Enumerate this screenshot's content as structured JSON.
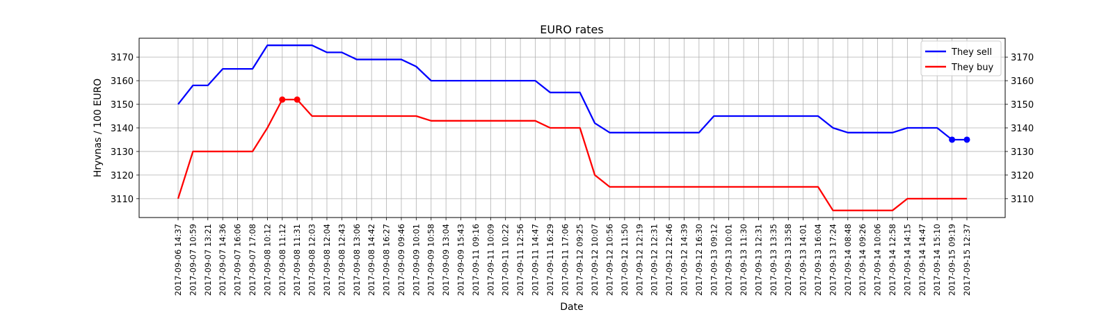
{
  "chart_data": {
    "type": "line",
    "title": "EURO rates",
    "xlabel": "Date",
    "ylabel": "Hryvnas / 100 EURO",
    "ylim": [
      3102,
      3178
    ],
    "yticks": [
      3110,
      3120,
      3130,
      3140,
      3150,
      3160,
      3170
    ],
    "y_axis_right_mirror": true,
    "grid": true,
    "legend_position": "top-right",
    "categories": [
      "2017-09-06 14:37",
      "2017-09-07 10:59",
      "2017-09-07 13:21",
      "2017-09-07 14:36",
      "2017-09-07 16:06",
      "2017-09-07 17:08",
      "2017-09-08 10:12",
      "2017-09-08 11:12",
      "2017-09-08 11:31",
      "2017-09-08 12:03",
      "2017-09-08 12:04",
      "2017-09-08 12:43",
      "2017-09-08 13:06",
      "2017-09-08 14:42",
      "2017-09-08 16:27",
      "2017-09-09 09:46",
      "2017-09-09 10:01",
      "2017-09-09 10:58",
      "2017-09-09 13:04",
      "2017-09-09 15:43",
      "2017-09-11 09:16",
      "2017-09-11 10:09",
      "2017-09-11 10:22",
      "2017-09-11 12:56",
      "2017-09-11 14:47",
      "2017-09-11 16:29",
      "2017-09-11 17:06",
      "2017-09-12 09:25",
      "2017-09-12 10:07",
      "2017-09-12 10:56",
      "2017-09-12 11:50",
      "2017-09-12 12:19",
      "2017-09-12 12:31",
      "2017-09-12 12:46",
      "2017-09-12 14:39",
      "2017-09-12 16:30",
      "2017-09-13 09:12",
      "2017-09-13 10:01",
      "2017-09-13 11:30",
      "2017-09-13 12:31",
      "2017-09-13 13:35",
      "2017-09-13 13:58",
      "2017-09-13 14:01",
      "2017-09-13 16:04",
      "2017-09-13 17:24",
      "2017-09-14 08:48",
      "2017-09-14 09:26",
      "2017-09-14 10:06",
      "2017-09-14 12:58",
      "2017-09-14 14:15",
      "2017-09-14 14:47",
      "2017-09-14 15:10",
      "2017-09-15 09:19",
      "2017-09-15 12:37"
    ],
    "series": [
      {
        "name": "They sell",
        "color": "#0000ff",
        "values": [
          3150,
          3158,
          3158,
          3165,
          3165,
          3165,
          3175,
          3175,
          3175,
          3175,
          3172,
          3172,
          3169,
          3169,
          3169,
          3169,
          3166,
          3160,
          3160,
          3160,
          3160,
          3160,
          3160,
          3160,
          3160,
          3155,
          3155,
          3155,
          3142,
          3138,
          3138,
          3138,
          3138,
          3138,
          3138,
          3138,
          3145,
          3145,
          3145,
          3145,
          3145,
          3145,
          3145,
          3145,
          3140,
          3138,
          3138,
          3138,
          3138,
          3140,
          3140,
          3140,
          3135,
          3135
        ],
        "marker_indices": [
          52,
          53
        ]
      },
      {
        "name": "They buy",
        "color": "#ff0000",
        "values": [
          3110,
          3130,
          3130,
          3130,
          3130,
          3130,
          3140,
          3152,
          3152,
          3145,
          3145,
          3145,
          3145,
          3145,
          3145,
          3145,
          3145,
          3143,
          3143,
          3143,
          3143,
          3143,
          3143,
          3143,
          3143,
          3140,
          3140,
          3140,
          3120,
          3115,
          3115,
          3115,
          3115,
          3115,
          3115,
          3115,
          3115,
          3115,
          3115,
          3115,
          3115,
          3115,
          3115,
          3115,
          3105,
          3105,
          3105,
          3105,
          3105,
          3110,
          3110,
          3110,
          3110,
          3110
        ],
        "marker_indices": [
          7,
          8
        ]
      }
    ]
  }
}
